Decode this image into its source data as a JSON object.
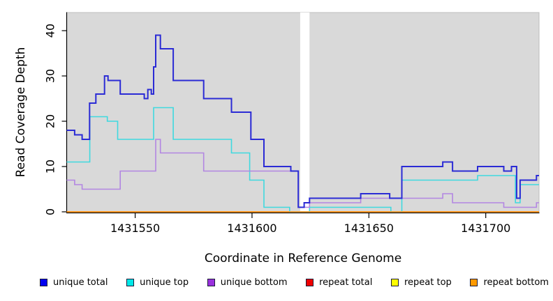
{
  "chart_data": {
    "type": "line",
    "subtype": "step-after",
    "title": "",
    "xlabel": "Coordinate in Reference Genome",
    "ylabel": "Read Coverage Depth",
    "xlim": [
      1431520.7,
      1431722.8
    ],
    "ylim": [
      0,
      44
    ],
    "x_ticks": [
      1431550,
      1431600,
      1431650,
      1431700
    ],
    "y_ticks": [
      0,
      10,
      20,
      30,
      40
    ],
    "grid": false,
    "legend_position": "bottom",
    "panel_bg": "#d9d9d9",
    "panel_border": "#bdbdbd",
    "axis_color": "#000000",
    "gap_region": {
      "x_start": 1431620.6,
      "x_end": 1431624.6,
      "color": "#ffffff"
    },
    "series": [
      {
        "name": "repeat total",
        "color": "#e60000",
        "width": 1.4,
        "steps": [
          [
            1431520.7,
            0
          ]
        ]
      },
      {
        "name": "repeat top",
        "color": "#ffff00",
        "width": 1.4,
        "steps": [
          [
            1431520.7,
            0
          ]
        ]
      },
      {
        "name": "unique top",
        "color": "#3fd9df",
        "width": 1.6,
        "steps": [
          [
            1431520.7,
            11
          ],
          [
            1431530.6,
            21
          ],
          [
            1431538.1,
            20
          ],
          [
            1431542.5,
            16
          ],
          [
            1431557.9,
            23
          ],
          [
            1431566.3,
            16
          ],
          [
            1431591.2,
            13
          ],
          [
            1431599.0,
            7
          ],
          [
            1431605.1,
            1
          ],
          [
            1431616.1,
            0
          ],
          [
            1431624.6,
            1
          ],
          [
            1431659.4,
            0
          ],
          [
            1431664.1,
            7
          ],
          [
            1431696.5,
            8
          ],
          [
            1431712.7,
            2
          ],
          [
            1431714.7,
            6
          ]
        ]
      },
      {
        "name": "repeat bottom",
        "color": "#ff8c1a",
        "width": 1.6,
        "steps": [
          [
            1431520.7,
            0
          ]
        ]
      },
      {
        "name": "unique bottom",
        "color": "#b286e2",
        "width": 1.6,
        "steps": [
          [
            1431520.7,
            7
          ],
          [
            1431524.1,
            6
          ],
          [
            1431527.3,
            5
          ],
          [
            1431543.6,
            9
          ],
          [
            1431558.8,
            16
          ],
          [
            1431560.8,
            13
          ],
          [
            1431579.3,
            9
          ],
          [
            1431619.8,
            1
          ],
          [
            1431624.6,
            2
          ],
          [
            1431646.5,
            3
          ],
          [
            1431681.6,
            4
          ],
          [
            1431685.8,
            2
          ],
          [
            1431707.7,
            1
          ],
          [
            1431721.7,
            2
          ]
        ]
      },
      {
        "name": "unique total",
        "color": "#2b2bd5",
        "width": 2,
        "steps": [
          [
            1431520.7,
            18
          ],
          [
            1431524.1,
            17
          ],
          [
            1431527.3,
            16
          ],
          [
            1431530.5,
            24
          ],
          [
            1431533.2,
            26
          ],
          [
            1431536.9,
            30
          ],
          [
            1431538.4,
            29
          ],
          [
            1431543.6,
            26
          ],
          [
            1431553.9,
            25
          ],
          [
            1431555.4,
            27
          ],
          [
            1431556.9,
            26
          ],
          [
            1431557.9,
            32
          ],
          [
            1431558.8,
            39
          ],
          [
            1431560.8,
            36
          ],
          [
            1431566.3,
            29
          ],
          [
            1431579.3,
            25
          ],
          [
            1431591.2,
            22
          ],
          [
            1431599.5,
            16
          ],
          [
            1431605.1,
            10
          ],
          [
            1431616.6,
            9
          ],
          [
            1431619.8,
            1
          ],
          [
            1431622.3,
            2
          ],
          [
            1431624.6,
            3
          ],
          [
            1431646.5,
            4
          ],
          [
            1431658.9,
            3
          ],
          [
            1431664.1,
            10
          ],
          [
            1431681.6,
            11
          ],
          [
            1431685.8,
            9
          ],
          [
            1431696.5,
            10
          ],
          [
            1431707.7,
            9
          ],
          [
            1431711.0,
            10
          ],
          [
            1431713.2,
            3
          ],
          [
            1431714.7,
            7
          ],
          [
            1431721.7,
            8
          ]
        ]
      }
    ]
  },
  "legend": {
    "items": [
      {
        "label": "unique total",
        "color": "#0000f0"
      },
      {
        "label": "unique top",
        "color": "#00e8e8"
      },
      {
        "label": "unique bottom",
        "color": "#9a30dd"
      },
      {
        "label": "repeat total",
        "color": "#ee0000"
      },
      {
        "label": "repeat top",
        "color": "#ffff00"
      },
      {
        "label": "repeat bottom",
        "color": "#ff9900"
      }
    ]
  }
}
